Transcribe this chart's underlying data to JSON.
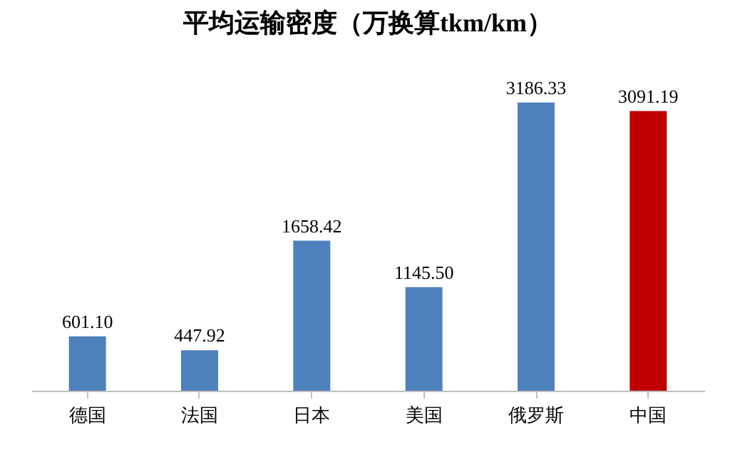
{
  "chart_data": {
    "type": "bar",
    "title": "平均运输密度（万换算tkm/km）",
    "categories": [
      "德国",
      "法国",
      "日本",
      "美国",
      "俄罗斯",
      "中国"
    ],
    "values": [
      601.1,
      447.92,
      1658.42,
      1145.5,
      3186.33,
      3091.19
    ],
    "value_labels": [
      "601.10",
      "447.92",
      "1658.42",
      "1145.50",
      "3186.33",
      "3091.19"
    ],
    "colors": [
      "#4f81bd",
      "#4f81bd",
      "#4f81bd",
      "#4f81bd",
      "#4f81bd",
      "#c00000"
    ]
  }
}
